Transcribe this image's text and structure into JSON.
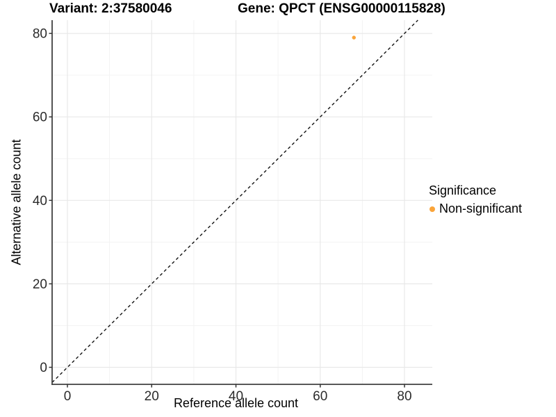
{
  "chart_data": {
    "type": "scatter",
    "titles": {
      "left": "Variant: 2:37580046",
      "right": "Gene: QPCT (ENSG00000115828)"
    },
    "xlabel": "Reference allele count",
    "ylabel": "Alternative allele count",
    "x_ticks": [
      0,
      20,
      40,
      60,
      80
    ],
    "y_ticks": [
      0,
      20,
      40,
      60,
      80
    ],
    "x_minor_ticks": [
      10,
      30,
      50,
      70
    ],
    "y_minor_ticks": [
      10,
      30,
      50,
      70
    ],
    "xlim": [
      -3.6,
      86.6
    ],
    "ylim": [
      -4.1,
      83.2
    ],
    "grid": true,
    "series": [
      {
        "name": "Non-significant",
        "color": "#FAA43A",
        "points": [
          {
            "x": 68,
            "y": 79
          }
        ]
      }
    ],
    "reference_line": {
      "kind": "identity",
      "slope": 1,
      "intercept": 0,
      "style": "dashed"
    },
    "legend": {
      "title": "Significance",
      "position": "right",
      "items": [
        {
          "label": "Non-significant",
          "color": "#FAA43A"
        }
      ]
    }
  },
  "colors": {
    "point_orange": "#FAA43A",
    "axis_line": "#404040",
    "tick_mark": "#333333",
    "tick_label": "#2b2b2b",
    "grid_major": "#e8e8e8",
    "grid_minor": "#f3f3f3",
    "reference_line": "#111111",
    "background": "#ffffff"
  }
}
